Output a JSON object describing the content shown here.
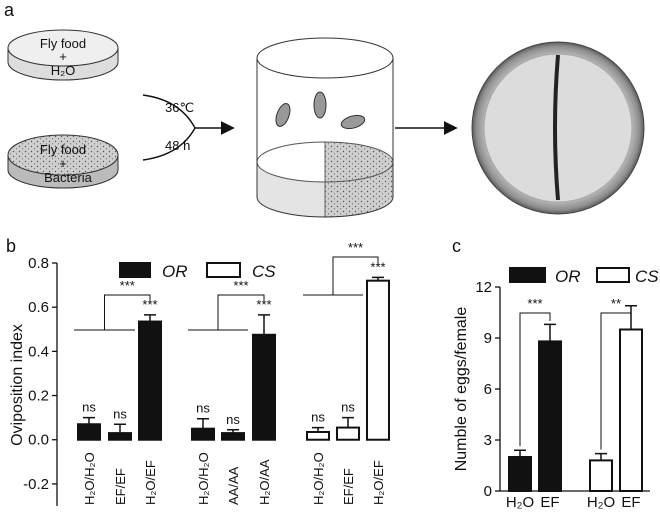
{
  "panel_a": {
    "label": "a",
    "dish1_line1": "Fly food",
    "dish1_line2": "+",
    "dish1_line3": "H₂O",
    "dish2_line1": "Fly food",
    "dish2_line2": "+",
    "dish2_line3": "Bacteria",
    "temperature": "36℃",
    "duration": "48 h"
  },
  "chart_data": [
    {
      "type": "bar",
      "panel_label": "b",
      "y_label": "Oviposition index",
      "categories": [
        "H₂O/H₂O",
        "EF/EF",
        "H₂O/EF",
        "H₂O/H₂O",
        "AA/AA",
        "H₂O/AA",
        "H₂O/H₂O",
        "EF/EF",
        "H₂O/EF"
      ],
      "series": [
        {
          "name": "OR",
          "color": "#111111",
          "values": [
            0.07,
            0.03,
            0.535,
            0.05,
            0.03,
            0.475,
            null,
            null,
            null
          ],
          "errors": [
            0.03,
            0.04,
            0.03,
            0.045,
            0.015,
            0.09,
            null,
            null,
            null
          ]
        },
        {
          "name": "CS",
          "color": "#ffffff",
          "values": [
            null,
            null,
            null,
            null,
            null,
            null,
            0.035,
            0.055,
            0.72
          ],
          "errors": [
            null,
            null,
            null,
            null,
            null,
            null,
            0.02,
            0.045,
            0.015
          ]
        }
      ],
      "bar_labels": [
        "ns",
        "ns",
        "***",
        "ns",
        "ns",
        "***",
        "ns",
        "ns",
        "***"
      ],
      "comparison_labels": [
        "***",
        "***",
        "***"
      ],
      "ylim": [
        -0.3,
        0.8
      ],
      "yticks": [
        -0.2,
        {
          "value": 0,
          "label": "0.0"
        },
        0.2,
        0.4,
        0.6,
        0.8
      ]
    },
    {
      "type": "bar",
      "panel_label": "c",
      "y_label": "Numble of eggs/female",
      "categories": [
        "H₂O",
        "EF",
        "H₂O",
        "EF"
      ],
      "series": [
        {
          "name": "OR",
          "color": "#111111",
          "values": [
            2.0,
            8.8,
            null,
            null
          ],
          "errors": [
            0.4,
            1.0,
            null,
            null
          ]
        },
        {
          "name": "CS",
          "color": "#ffffff",
          "values": [
            null,
            null,
            1.8,
            9.5
          ],
          "errors": [
            null,
            null,
            0.4,
            1.4
          ]
        }
      ],
      "comparison_labels": [
        "***",
        "**"
      ],
      "ylim": [
        0,
        12
      ],
      "yticks": [
        0,
        3,
        6,
        9,
        12
      ]
    }
  ]
}
